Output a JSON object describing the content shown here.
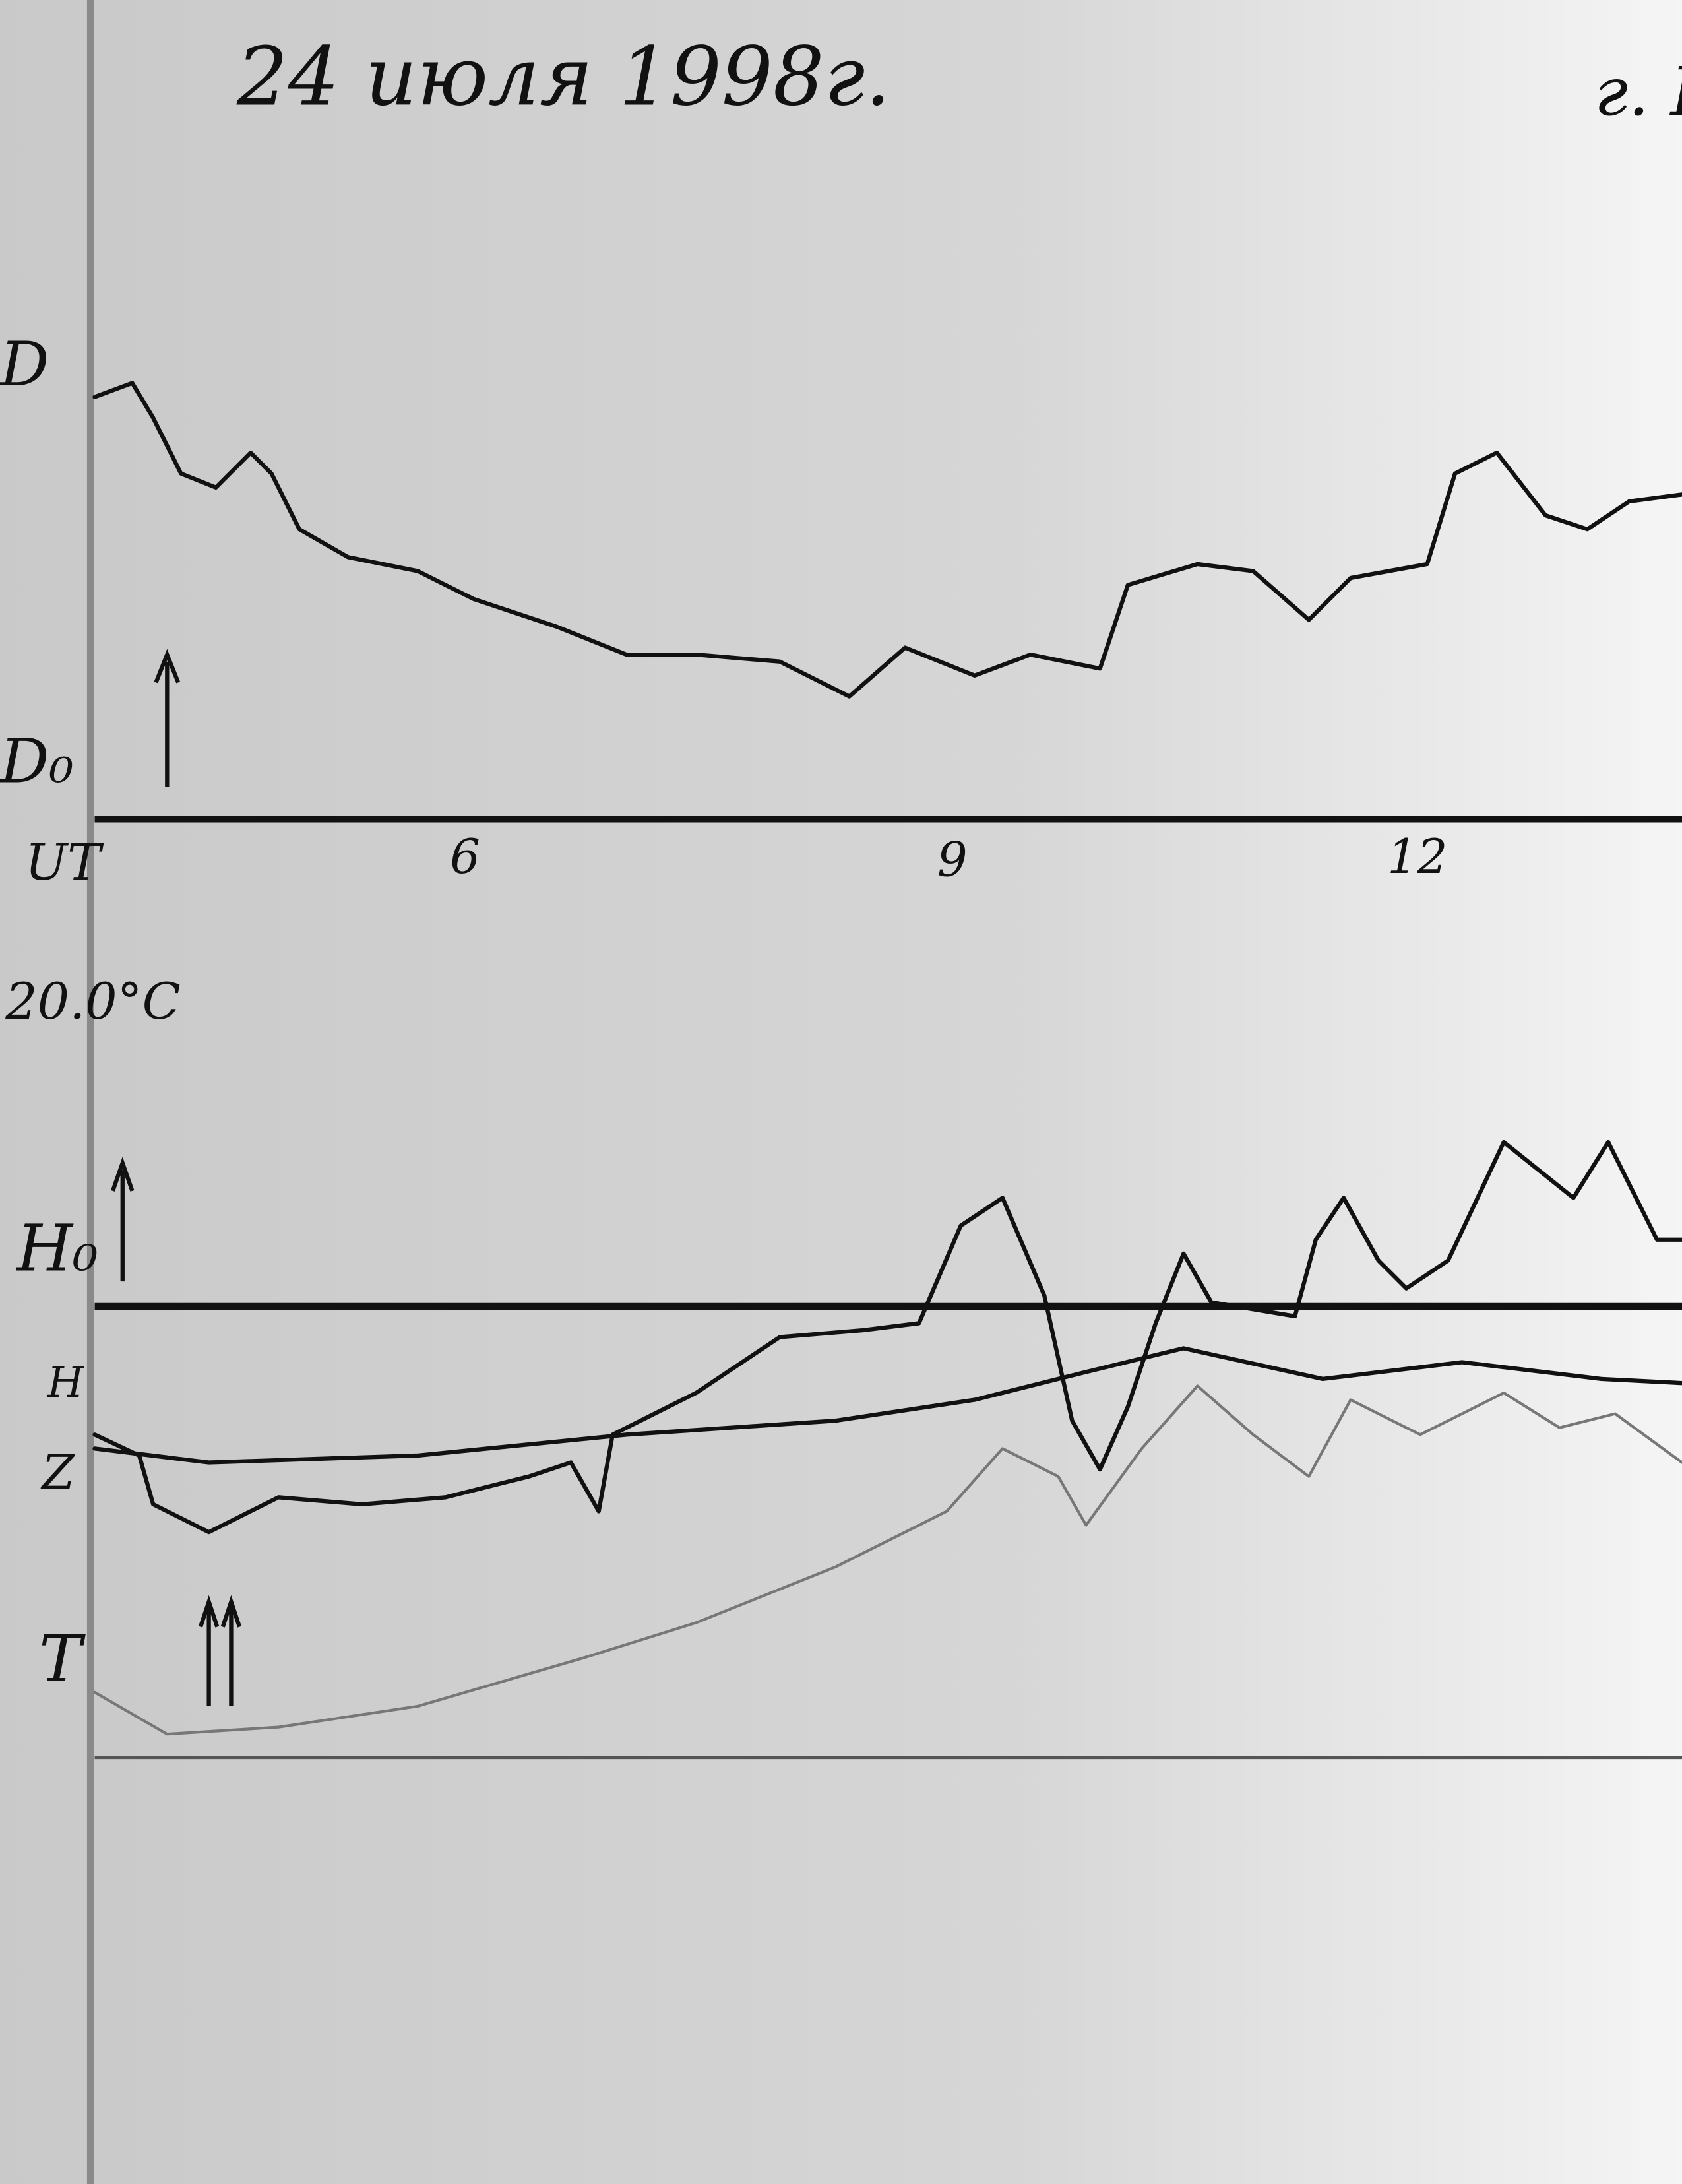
{
  "header": {
    "date": "24 июля 1998г.",
    "place": "г. Г"
  },
  "labels": {
    "d": "D",
    "d0": "D₀",
    "ut": "UT",
    "temperature": "20.0°C",
    "h0": "H₀",
    "h": "H",
    "z": "Z",
    "t": "T"
  },
  "time_ticks": [
    "6",
    "9",
    "12"
  ]
}
